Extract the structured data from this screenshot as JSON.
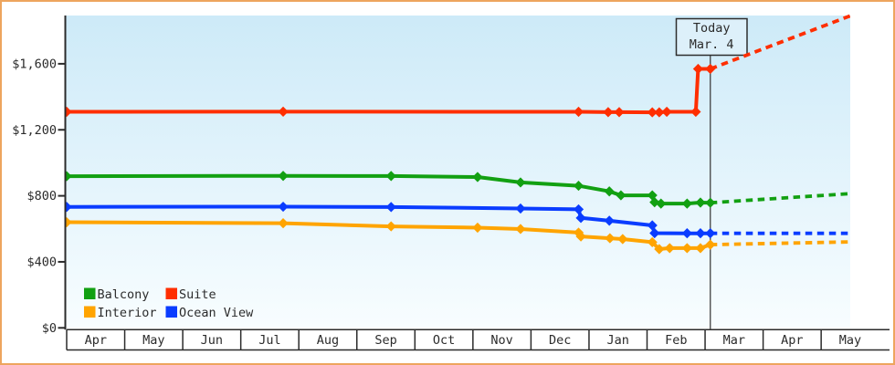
{
  "chart_data": {
    "type": "line",
    "title": "",
    "x_axis": {
      "unit": "month",
      "labels": [
        "Apr",
        "May",
        "Jun",
        "Jul",
        "Aug",
        "Sep",
        "Oct",
        "Nov",
        "Dec",
        "Jan",
        "Feb",
        "Mar",
        "Apr",
        "May"
      ]
    },
    "y_axis": {
      "ticks": [
        0,
        400,
        800,
        1200,
        1600
      ],
      "tick_labels": [
        "$0",
        "$400",
        "$800",
        "$1,200",
        "$1,600"
      ],
      "range": [
        0,
        1900
      ],
      "grid": false
    },
    "today_marker": {
      "label_line1": "Today",
      "label_line2": "Mar. 4",
      "x_months": 11.09
    },
    "legend": {
      "position": "bottom-left",
      "entries": [
        "Balcony",
        "Suite",
        "Interior",
        "Ocean View"
      ]
    },
    "series": [
      {
        "name": "Balcony",
        "color": "#12a012",
        "points": [
          [
            0,
            919
          ],
          [
            3.73,
            921
          ],
          [
            5.59,
            920
          ],
          [
            7.08,
            914
          ],
          [
            7.82,
            881
          ],
          [
            8.82,
            861
          ],
          [
            9.35,
            827
          ],
          [
            9.55,
            803
          ],
          [
            10.09,
            803
          ],
          [
            10.13,
            761
          ],
          [
            10.24,
            753
          ],
          [
            10.69,
            753
          ],
          [
            10.92,
            759
          ],
          [
            11.09,
            758
          ]
        ],
        "projection": [
          [
            11.09,
            758
          ],
          [
            13.5,
            813
          ]
        ]
      },
      {
        "name": "Suite",
        "color": "#ff2e00",
        "points": [
          [
            0,
            1309
          ],
          [
            3.73,
            1310
          ],
          [
            8.82,
            1309
          ],
          [
            9.33,
            1307
          ],
          [
            9.52,
            1307
          ],
          [
            10.09,
            1306
          ],
          [
            10.21,
            1306
          ],
          [
            10.34,
            1309
          ],
          [
            10.84,
            1309
          ],
          [
            10.88,
            1569
          ],
          [
            11.09,
            1569
          ]
        ],
        "projection": [
          [
            11.09,
            1569
          ],
          [
            13.5,
            1890
          ]
        ]
      },
      {
        "name": "Interior",
        "color": "#ffa400",
        "points": [
          [
            0,
            640
          ],
          [
            3.73,
            634
          ],
          [
            5.59,
            615
          ],
          [
            7.08,
            607
          ],
          [
            7.82,
            599
          ],
          [
            8.82,
            577
          ],
          [
            8.86,
            554
          ],
          [
            9.36,
            543
          ],
          [
            9.58,
            538
          ],
          [
            10.09,
            519
          ],
          [
            10.21,
            477
          ],
          [
            10.39,
            483
          ],
          [
            10.69,
            483
          ],
          [
            10.92,
            483
          ],
          [
            11.09,
            504
          ]
        ],
        "projection": [
          [
            11.09,
            504
          ],
          [
            13.5,
            521
          ]
        ]
      },
      {
        "name": "Ocean View",
        "color": "#0a3cff",
        "points": [
          [
            0,
            733
          ],
          [
            3.73,
            734
          ],
          [
            5.59,
            732
          ],
          [
            7.82,
            723
          ],
          [
            8.82,
            718
          ],
          [
            8.86,
            666
          ],
          [
            9.35,
            649
          ],
          [
            10.09,
            621
          ],
          [
            10.13,
            574
          ],
          [
            10.69,
            573
          ],
          [
            10.92,
            573
          ],
          [
            11.09,
            573
          ]
        ],
        "projection": [
          [
            11.09,
            573
          ],
          [
            13.5,
            573
          ]
        ]
      }
    ]
  },
  "colors": {
    "frame_border": "#eda55e",
    "axis": "#2b2b2b",
    "plot_bg_top": "#cdeaf8",
    "plot_bg_bottom": "#f8fdff",
    "today_line": "#404040",
    "today_box_fill": "#ddf0fa",
    "today_box_border": "#2d2d2d",
    "text": "#2b2b2b"
  }
}
